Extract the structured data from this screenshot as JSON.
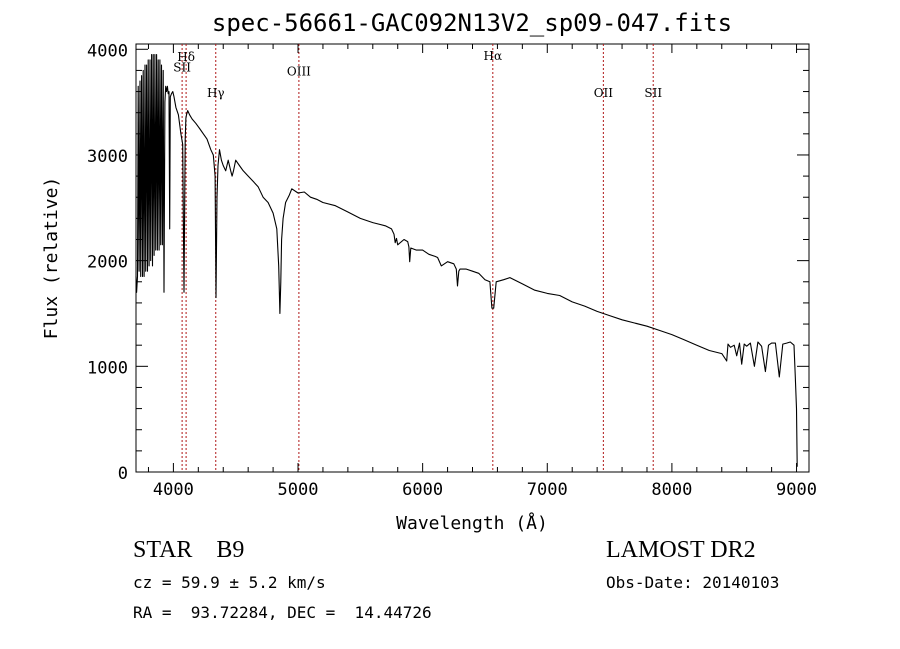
{
  "chart_data": {
    "type": "line",
    "title": "spec-56661-GAC092N13V2_sp09-047.fits",
    "xlabel": "Wavelength (Å)",
    "ylabel": "Flux (relative)",
    "xlim": [
      3700,
      9100
    ],
    "ylim": [
      0,
      4050
    ],
    "xticks": [
      4000,
      5000,
      6000,
      7000,
      8000,
      9000
    ],
    "yticks": [
      0,
      1000,
      2000,
      3000,
      4000
    ],
    "series": [
      {
        "name": "spectrum",
        "x": [
          3700,
          3705,
          3712,
          3718,
          3725,
          3732,
          3738,
          3745,
          3752,
          3758,
          3765,
          3772,
          3778,
          3785,
          3792,
          3798,
          3805,
          3812,
          3818,
          3825,
          3832,
          3838,
          3845,
          3852,
          3858,
          3865,
          3872,
          3878,
          3885,
          3892,
          3898,
          3905,
          3912,
          3918,
          3925,
          3932,
          3938,
          3945,
          3952,
          3958,
          3965,
          3970,
          3975,
          3985,
          3995,
          4005,
          4020,
          4040,
          4060,
          4075,
          4085,
          4095,
          4100,
          4105,
          4115,
          4130,
          4150,
          4180,
          4210,
          4240,
          4270,
          4300,
          4320,
          4335,
          4342,
          4350,
          4358,
          4370,
          4385,
          4400,
          4420,
          4440,
          4460,
          4471,
          4482,
          4500,
          4530,
          4560,
          4600,
          4640,
          4680,
          4720,
          4760,
          4800,
          4830,
          4845,
          4855,
          4862,
          4868,
          4880,
          4900,
          4930,
          4950,
          5000,
          5050,
          5100,
          5150,
          5200,
          5300,
          5400,
          5500,
          5600,
          5700,
          5750,
          5770,
          5780,
          5790,
          5800,
          5850,
          5880,
          5890,
          5896,
          5905,
          5950,
          6000,
          6050,
          6100,
          6120,
          6150,
          6200,
          6250,
          6270,
          6280,
          6290,
          6300,
          6350,
          6400,
          6450,
          6500,
          6540,
          6556,
          6563,
          6570,
          6590,
          6650,
          6700,
          6800,
          6900,
          7000,
          7100,
          7200,
          7300,
          7400,
          7500,
          7600,
          7700,
          7800,
          7900,
          8000,
          8100,
          8200,
          8300,
          8400,
          8440,
          8450,
          8470,
          8500,
          8520,
          8542,
          8560,
          8580,
          8600,
          8630,
          8662,
          8690,
          8720,
          8750,
          8775,
          8800,
          8830,
          8862,
          8890,
          8920,
          8950,
          8980,
          8990,
          9000,
          9005
        ],
        "values": [
          1850,
          1700,
          1850,
          3650,
          1900,
          3700,
          1850,
          3750,
          1850,
          3800,
          1850,
          3850,
          1900,
          3850,
          1900,
          3900,
          1950,
          3900,
          2000,
          3950,
          1950,
          3950,
          2050,
          3950,
          2100,
          3950,
          2100,
          3900,
          2100,
          3900,
          2150,
          3850,
          2150,
          3800,
          1700,
          3500,
          3650,
          3600,
          3650,
          3580,
          3600,
          2300,
          3550,
          3580,
          3600,
          3550,
          3450,
          3380,
          3200,
          3100,
          1700,
          3150,
          3350,
          3380,
          3420,
          3380,
          3340,
          3300,
          3250,
          3200,
          3150,
          3050,
          3000,
          2800,
          1650,
          2600,
          2900,
          3050,
          2950,
          2900,
          2850,
          2950,
          2850,
          2800,
          2850,
          2950,
          2900,
          2850,
          2800,
          2750,
          2700,
          2600,
          2550,
          2450,
          2300,
          1950,
          1500,
          1800,
          2200,
          2400,
          2550,
          2620,
          2680,
          2640,
          2650,
          2600,
          2580,
          2550,
          2520,
          2460,
          2400,
          2360,
          2330,
          2300,
          2250,
          2170,
          2210,
          2150,
          2200,
          2180,
          2130,
          1990,
          2120,
          2100,
          2100,
          2060,
          2040,
          2030,
          1950,
          1990,
          1970,
          1920,
          1760,
          1900,
          1920,
          1920,
          1900,
          1880,
          1820,
          1800,
          1550,
          1550,
          1550,
          1800,
          1820,
          1840,
          1780,
          1720,
          1690,
          1670,
          1610,
          1570,
          1520,
          1480,
          1440,
          1410,
          1380,
          1340,
          1300,
          1250,
          1200,
          1150,
          1120,
          1050,
          1210,
          1180,
          1200,
          1100,
          1220,
          1020,
          1210,
          1190,
          1220,
          1000,
          1230,
          1190,
          950,
          1200,
          1220,
          1220,
          900,
          1210,
          1220,
          1230,
          1200,
          900,
          600,
          50
        ]
      }
    ],
    "line_markers": [
      {
        "wavelength": 4070,
        "label": "SII",
        "label_flux": 3790
      },
      {
        "wavelength": 4102,
        "label": "Hδ",
        "label_flux": 3890
      },
      {
        "wavelength": 4340,
        "label": "Hγ",
        "label_flux": 3550
      },
      {
        "wavelength": 5007,
        "label": "OIII",
        "label_flux": 3750
      },
      {
        "wavelength": 6563,
        "label": "Hα",
        "label_flux": 3900
      },
      {
        "wavelength": 7450,
        "label": "OII",
        "label_flux": 3550
      },
      {
        "wavelength": 7850,
        "label": "SII",
        "label_flux": 3550
      }
    ],
    "grid": false
  },
  "info": {
    "type_line": "STAR    B9",
    "survey": "LAMOST DR2",
    "cz": "cz = 59.9 ± 5.2 km/s",
    "obs_date": "Obs-Date: 20140103",
    "radec": "RA =  93.72284, DEC =  14.44726"
  }
}
